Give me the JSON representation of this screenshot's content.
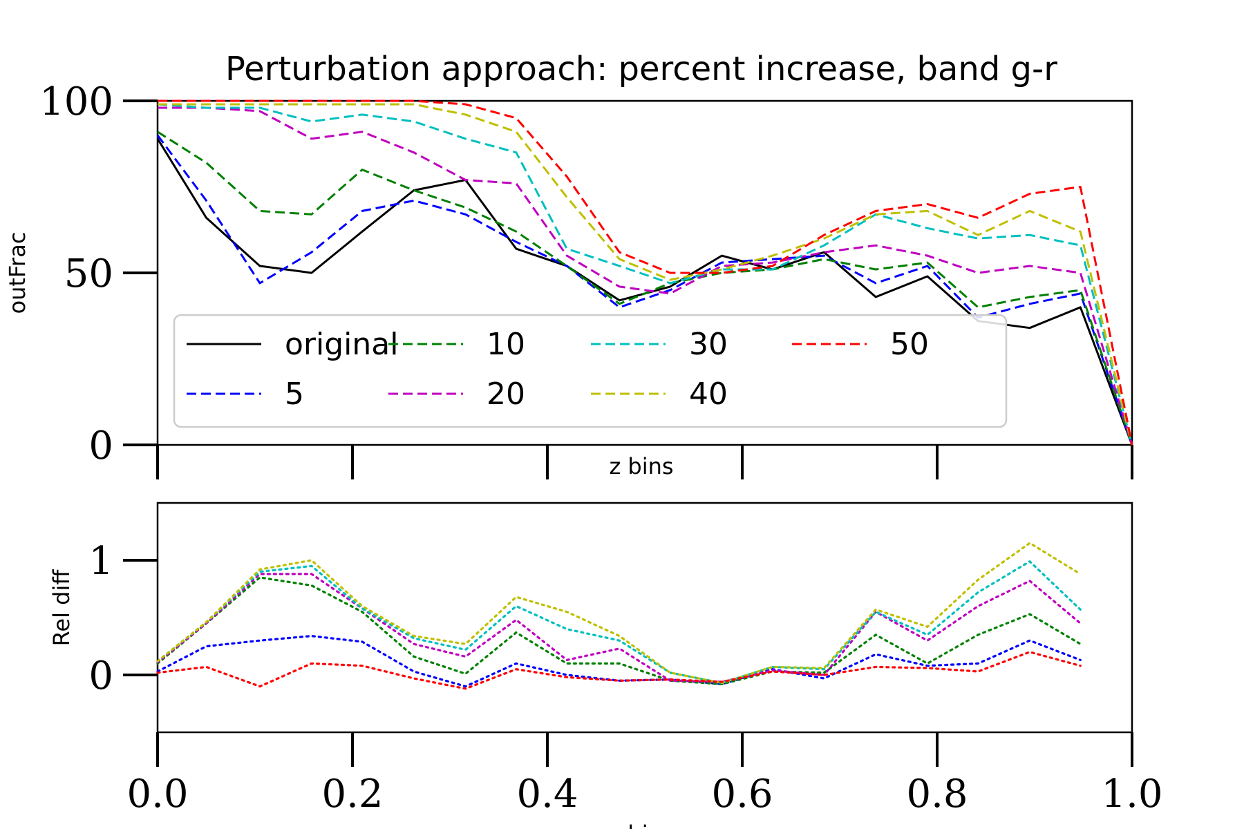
{
  "chart_data": [
    {
      "type": "line",
      "title": "Perturbation approach: percent increase, band g-r",
      "xlabel": "z bins",
      "ylabel": "outFrac",
      "xlim": [
        0,
        1
      ],
      "ylim": [
        0,
        100
      ],
      "yticks": [
        0,
        50,
        100
      ],
      "xtick_labels_shown": false,
      "grid": false,
      "legend": {
        "placement": "lower-center",
        "columns": 4
      },
      "x": [
        0.0,
        0.05,
        0.105,
        0.158,
        0.21,
        0.263,
        0.316,
        0.368,
        0.42,
        0.474,
        0.526,
        0.579,
        0.631,
        0.684,
        0.737,
        0.79,
        0.842,
        0.895,
        0.947,
        1.0
      ],
      "series": [
        {
          "name": "original",
          "color": "#000000",
          "dash": "solid",
          "values": [
            89,
            66,
            52,
            50,
            62,
            74,
            77,
            57,
            52,
            42,
            46,
            55,
            51,
            56,
            43,
            49,
            36,
            34,
            40,
            0
          ]
        },
        {
          "name": "5",
          "color": "#0000ff",
          "dash": "dashed",
          "values": [
            90,
            71,
            47,
            56,
            68,
            71,
            67,
            59,
            52,
            40,
            45,
            53,
            54,
            55,
            47,
            52,
            37,
            41,
            44,
            0
          ]
        },
        {
          "name": "10",
          "color": "#008000",
          "dash": "dashed",
          "values": [
            91,
            82,
            68,
            67,
            80,
            74,
            69,
            62,
            52,
            41,
            47,
            50,
            51,
            54,
            51,
            53,
            40,
            43,
            45,
            0
          ]
        },
        {
          "name": "20",
          "color": "#bf00bf",
          "dash": "dashed",
          "values": [
            98,
            98,
            97,
            89,
            91,
            85,
            77,
            76,
            55,
            46,
            44,
            52,
            53,
            56,
            58,
            55,
            50,
            52,
            50,
            0
          ]
        },
        {
          "name": "30",
          "color": "#00bfbf",
          "dash": "dashed",
          "values": [
            99,
            98,
            98,
            94,
            96,
            94,
            89,
            85,
            57,
            52,
            47,
            51,
            51,
            58,
            67,
            63,
            60,
            61,
            58,
            0
          ]
        },
        {
          "name": "40",
          "color": "#bfbf00",
          "dash": "dashed",
          "values": [
            99,
            99,
            99,
            99,
            99,
            99,
            96,
            91,
            72,
            54,
            48,
            51,
            55,
            60,
            67,
            68,
            61,
            68,
            62,
            0
          ]
        },
        {
          "name": "50",
          "color": "#ff0000",
          "dash": "dashed",
          "values": [
            100,
            100,
            100,
            100,
            100,
            100,
            99,
            95,
            78,
            56,
            50,
            50,
            52,
            61,
            68,
            70,
            66,
            73,
            75,
            0
          ]
        }
      ]
    },
    {
      "type": "line",
      "xlabel": "z bins",
      "ylabel": "Rel diff",
      "xlim": [
        0,
        1
      ],
      "ylim": [
        -0.5,
        1.5
      ],
      "yticks": [
        0,
        1
      ],
      "xticks": [
        0.0,
        0.2,
        0.4,
        0.6,
        0.8,
        1.0
      ],
      "xtick_labels": [
        "0.0",
        "0.2",
        "0.4",
        "0.6",
        "0.8",
        "1.0"
      ],
      "grid": false,
      "x": [
        0.0,
        0.05,
        0.105,
        0.158,
        0.21,
        0.263,
        0.316,
        0.368,
        0.42,
        0.474,
        0.526,
        0.579,
        0.631,
        0.684,
        0.737,
        0.79,
        0.842,
        0.895,
        0.947
      ],
      "series": [
        {
          "color": "#0000ff",
          "dash": "dotted",
          "values": [
            0.03,
            0.25,
            0.3,
            0.34,
            0.29,
            0.03,
            -0.1,
            0.1,
            0.0,
            -0.05,
            -0.04,
            -0.08,
            0.05,
            -0.03,
            0.18,
            0.08,
            0.1,
            0.3,
            0.13
          ]
        },
        {
          "color": "#008000",
          "dash": "dotted",
          "values": [
            0.1,
            0.45,
            0.85,
            0.78,
            0.55,
            0.16,
            0.01,
            0.37,
            0.1,
            0.1,
            -0.05,
            -0.08,
            0.03,
            0.02,
            0.35,
            0.1,
            0.35,
            0.53,
            0.27
          ]
        },
        {
          "color": "#bf00bf",
          "dash": "dotted",
          "values": [
            0.11,
            0.45,
            0.88,
            0.88,
            0.58,
            0.27,
            0.16,
            0.48,
            0.13,
            0.23,
            -0.05,
            -0.06,
            0.04,
            0.0,
            0.55,
            0.3,
            0.6,
            0.82,
            0.45
          ]
        },
        {
          "color": "#00bfbf",
          "dash": "dotted",
          "values": [
            0.12,
            0.46,
            0.9,
            0.95,
            0.58,
            0.32,
            0.22,
            0.6,
            0.4,
            0.3,
            0.02,
            -0.07,
            0.07,
            0.05,
            0.55,
            0.35,
            0.72,
            0.99,
            0.57
          ]
        },
        {
          "color": "#bfbf00",
          "dash": "dotted",
          "values": [
            0.12,
            0.46,
            0.92,
            1.0,
            0.6,
            0.34,
            0.27,
            0.68,
            0.55,
            0.34,
            0.02,
            -0.07,
            0.07,
            0.06,
            0.57,
            0.42,
            0.83,
            1.15,
            0.88
          ]
        },
        {
          "color": "#ff0000",
          "dash": "dotted",
          "values": [
            0.02,
            0.07,
            -0.1,
            0.1,
            0.08,
            -0.03,
            -0.12,
            0.05,
            -0.02,
            -0.05,
            -0.04,
            -0.06,
            0.03,
            0.0,
            0.07,
            0.06,
            0.03,
            0.2,
            0.08
          ]
        }
      ]
    }
  ]
}
